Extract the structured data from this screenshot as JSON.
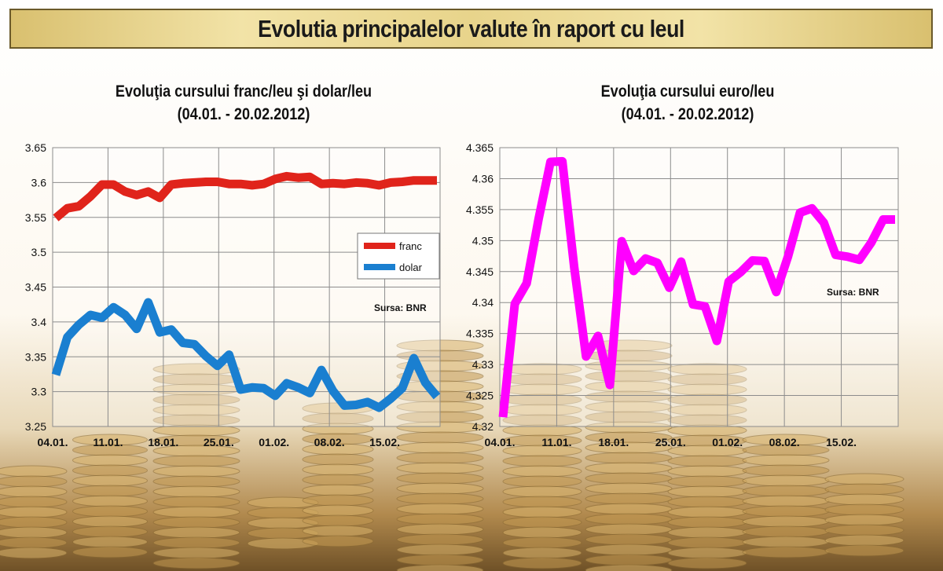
{
  "banner": {
    "title": "Evolutia principalelor valute  în raport cu leul"
  },
  "colors": {
    "franc": "#e0241b",
    "dolar": "#1a7fd0",
    "euro": "#ff00ff",
    "grid": "#8c8c8c",
    "banner_bg": "#e8d48b"
  },
  "charts": [
    {
      "title_line1": "Evoluţia cursului franc/leu şi dolar/leu",
      "title_line2": "(04.01. - 20.02.2012)"
    },
    {
      "title_line1": "Evoluţia cursului euro/leu",
      "title_line2": "(04.01. - 20.02.2012)"
    }
  ],
  "chart_data": [
    {
      "type": "line",
      "title": "Evoluţia cursului franc/leu şi dolar/leu (04.01. - 20.02.2012)",
      "x_tick_labels": [
        "04.01.",
        "11.01.",
        "18.01.",
        "25.01.",
        "01.02.",
        "08.02.",
        "15.02."
      ],
      "y_tick_labels": [
        "3.25",
        "3.3",
        "3.35",
        "3.4",
        "3.45",
        "3.5",
        "3.55",
        "3.6",
        "3.65"
      ],
      "ylim": [
        3.25,
        3.65
      ],
      "grid": true,
      "legend": "right, middle",
      "annotation": "Sursa: BNR",
      "series": [
        {
          "name": "franc",
          "values": [
            3.549,
            3.563,
            3.566,
            3.58,
            3.597,
            3.597,
            3.587,
            3.582,
            3.587,
            3.578,
            3.597,
            3.599,
            3.6,
            3.601,
            3.601,
            3.598,
            3.598,
            3.596,
            3.598,
            3.605,
            3.609,
            3.607,
            3.608,
            3.598,
            3.599,
            3.598,
            3.6,
            3.599,
            3.596,
            3.6,
            3.601,
            3.603,
            3.603,
            3.603
          ]
        },
        {
          "name": "dolar",
          "values": [
            3.324,
            3.378,
            3.396,
            3.41,
            3.406,
            3.421,
            3.41,
            3.39,
            3.428,
            3.385,
            3.389,
            3.37,
            3.368,
            3.351,
            3.337,
            3.353,
            3.303,
            3.306,
            3.305,
            3.294,
            3.312,
            3.306,
            3.298,
            3.331,
            3.301,
            3.28,
            3.281,
            3.285,
            3.277,
            3.29,
            3.305,
            3.348,
            3.313,
            3.293
          ]
        }
      ]
    },
    {
      "type": "line",
      "title": "Evoluţia cursului euro/leu (04.01. - 20.02.2012)",
      "x_tick_labels": [
        "04.01.",
        "11.01.",
        "18.01.",
        "25.01.",
        "01.02.",
        "08.02.",
        "15.02."
      ],
      "y_tick_labels": [
        "4.32",
        "4.325",
        "4.33",
        "4.335",
        "4.34",
        "4.345",
        "4.35",
        "4.355",
        "4.36",
        "4.365"
      ],
      "ylim": [
        4.32,
        4.365
      ],
      "grid": true,
      "annotation": "Sursa: BNR",
      "series": [
        {
          "name": "euro",
          "values": [
            4.3215,
            4.3398,
            4.3431,
            4.3535,
            4.3627,
            4.3628,
            4.3457,
            4.3313,
            4.3346,
            4.3267,
            4.3499,
            4.3451,
            4.3471,
            4.3464,
            4.3424,
            4.3466,
            4.3397,
            4.3394,
            4.3338,
            4.3434,
            4.3449,
            4.3468,
            4.3467,
            4.3417,
            4.3475,
            4.3545,
            4.3552,
            4.3529,
            4.3477,
            4.3474,
            4.3469,
            4.3497,
            4.3534,
            4.3534
          ]
        }
      ]
    }
  ]
}
